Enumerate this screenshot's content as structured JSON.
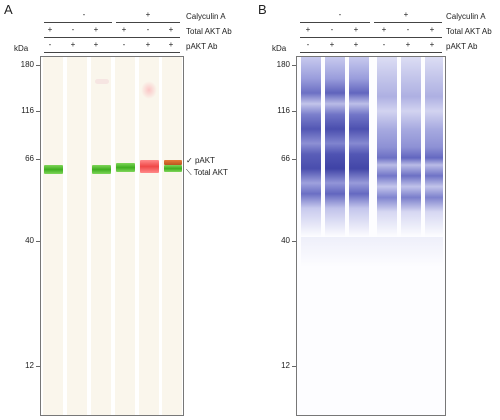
{
  "panel_a": {
    "letter": "A",
    "kda": "kDa",
    "row_labels": [
      "Calyculin A",
      "Total AKT Ab",
      "pAKT Ab"
    ],
    "calyculin_groups": [
      "-",
      "+"
    ],
    "total_akt": [
      "+",
      "-",
      "+",
      "+",
      "-",
      "+"
    ],
    "pakt": [
      "-",
      "+",
      "+",
      "-",
      "+",
      "+"
    ],
    "mw_ticks": [
      "180",
      "116",
      "66",
      "40",
      "12"
    ],
    "band_labels": [
      "pAKT",
      "Total AKT"
    ]
  },
  "panel_b": {
    "letter": "B",
    "kda": "kDa",
    "row_labels": [
      "Calyculin A",
      "Total AKT Ab",
      "pAKT Ab"
    ],
    "calyculin_groups": [
      "-",
      "+"
    ],
    "total_akt": [
      "+",
      "-",
      "+",
      "+",
      "-",
      "+"
    ],
    "pakt": [
      "-",
      "+",
      "+",
      "-",
      "+",
      "+"
    ],
    "mw_ticks": [
      "180",
      "116",
      "66",
      "40",
      "12"
    ]
  },
  "colors": {
    "total_akt_green": "#4fbf2a",
    "pakt_red": "#f25a5a",
    "protein_blue": "#5b5fb8",
    "lane_bg": "#faf6ec"
  }
}
